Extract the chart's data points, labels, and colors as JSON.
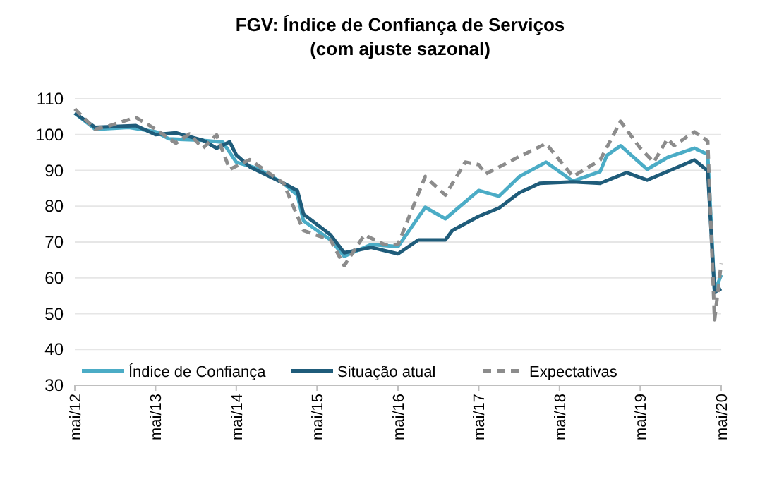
{
  "chart_data": {
    "type": "line",
    "title": "FGV: Índice de Confiança de Serviços",
    "subtitle": "(com ajuste sazonal)",
    "xlim": [
      "2012-05",
      "2020-05"
    ],
    "xticks": [
      {
        "value": "2012-05",
        "label": "mai/12"
      },
      {
        "value": "2013-05",
        "label": "mai/13"
      },
      {
        "value": "2014-05",
        "label": "mai/14"
      },
      {
        "value": "2015-05",
        "label": "mai/15"
      },
      {
        "value": "2016-05",
        "label": "mai/16"
      },
      {
        "value": "2017-05",
        "label": "mai/17"
      },
      {
        "value": "2018-05",
        "label": "mai/18"
      },
      {
        "value": "2019-05",
        "label": "mai/19"
      },
      {
        "value": "2020-05",
        "label": "mai/20"
      }
    ],
    "ylim": [
      30,
      110
    ],
    "yticks": [
      30,
      40,
      50,
      60,
      70,
      80,
      90,
      100,
      110
    ],
    "grid": "y",
    "legend": "bottom",
    "line_style": "solid",
    "marker": "none",
    "series": [
      {
        "name": "Índice de Confiança",
        "color": "#4bacc6",
        "x": [
          "2012-05",
          "2012-08",
          "2013-01",
          "2013-05",
          "2013-07",
          "2013-12",
          "2014-03",
          "2014-05",
          "2014-08",
          "2014-12",
          "2015-02",
          "2015-03",
          "2015-07",
          "2015-09",
          "2016-01",
          "2016-05",
          "2016-09",
          "2016-12",
          "2017-05",
          "2017-08",
          "2017-11",
          "2018-03",
          "2018-07",
          "2018-11",
          "2018-12",
          "2019-02",
          "2019-06",
          "2019-09",
          "2020-01",
          "2020-03",
          "2020-04",
          "2020-05"
        ],
        "values": [
          106,
          101.5,
          102,
          100.8,
          98.8,
          98.4,
          97.9,
          92.3,
          90.6,
          86.4,
          83.1,
          75.9,
          70.6,
          66,
          69.3,
          68.7,
          79.7,
          76.5,
          84.4,
          82.8,
          88.3,
          92.3,
          87,
          89.7,
          94.2,
          96.9,
          90.3,
          93.6,
          96.2,
          94.5,
          56,
          60.8
        ]
      },
      {
        "name": "Situação atual",
        "color": "#1f5c7a",
        "x": [
          "2012-05",
          "2012-08",
          "2013-02",
          "2013-05",
          "2013-08",
          "2013-12",
          "2014-02",
          "2014-04",
          "2014-05",
          "2014-07",
          "2014-12",
          "2015-02",
          "2015-03",
          "2015-07",
          "2015-09",
          "2016-01",
          "2016-05",
          "2016-08",
          "2016-12",
          "2017-01",
          "2017-05",
          "2017-08",
          "2017-11",
          "2018-02",
          "2018-07",
          "2018-11",
          "2019-03",
          "2019-06",
          "2019-09",
          "2020-01",
          "2020-03",
          "2020-04",
          "2020-05"
        ],
        "values": [
          106,
          102,
          102.5,
          100,
          100.5,
          98.4,
          96.2,
          98,
          94.3,
          91,
          86.4,
          84.4,
          77.8,
          72,
          67,
          68.5,
          66.7,
          70.6,
          70.6,
          73.2,
          77.2,
          79.5,
          83.8,
          86.4,
          86.8,
          86.4,
          89.4,
          87.3,
          89.7,
          92.9,
          89.9,
          56,
          57
        ]
      },
      {
        "name": "Expectativas",
        "color": "#8c8c8c",
        "line_style": "dashed",
        "x": [
          "2012-05",
          "2012-08",
          "2012-10",
          "2013-02",
          "2013-05",
          "2013-08",
          "2013-10",
          "2013-12",
          "2014-02",
          "2014-04",
          "2014-07",
          "2014-12",
          "2015-03",
          "2015-07",
          "2015-09",
          "2015-12",
          "2016-03",
          "2016-05",
          "2016-09",
          "2016-12",
          "2017-03",
          "2017-05",
          "2017-06",
          "2017-10",
          "2018-03",
          "2018-07",
          "2018-11",
          "2019-02",
          "2019-05",
          "2019-07",
          "2019-09",
          "2019-10",
          "2020-01",
          "2020-03",
          "2020-04",
          "2020-05"
        ],
        "values": [
          107.2,
          101.5,
          102.4,
          104.8,
          101.5,
          97.6,
          100.2,
          96.2,
          99.9,
          90.3,
          93,
          86.4,
          73.2,
          70.6,
          63.4,
          72,
          69.3,
          69.3,
          88.3,
          83.1,
          92.3,
          91.6,
          89,
          92.9,
          97.5,
          88.3,
          92.9,
          103.7,
          96.2,
          92.3,
          98.8,
          96.9,
          100.8,
          98.2,
          48.3,
          64
        ]
      }
    ]
  }
}
